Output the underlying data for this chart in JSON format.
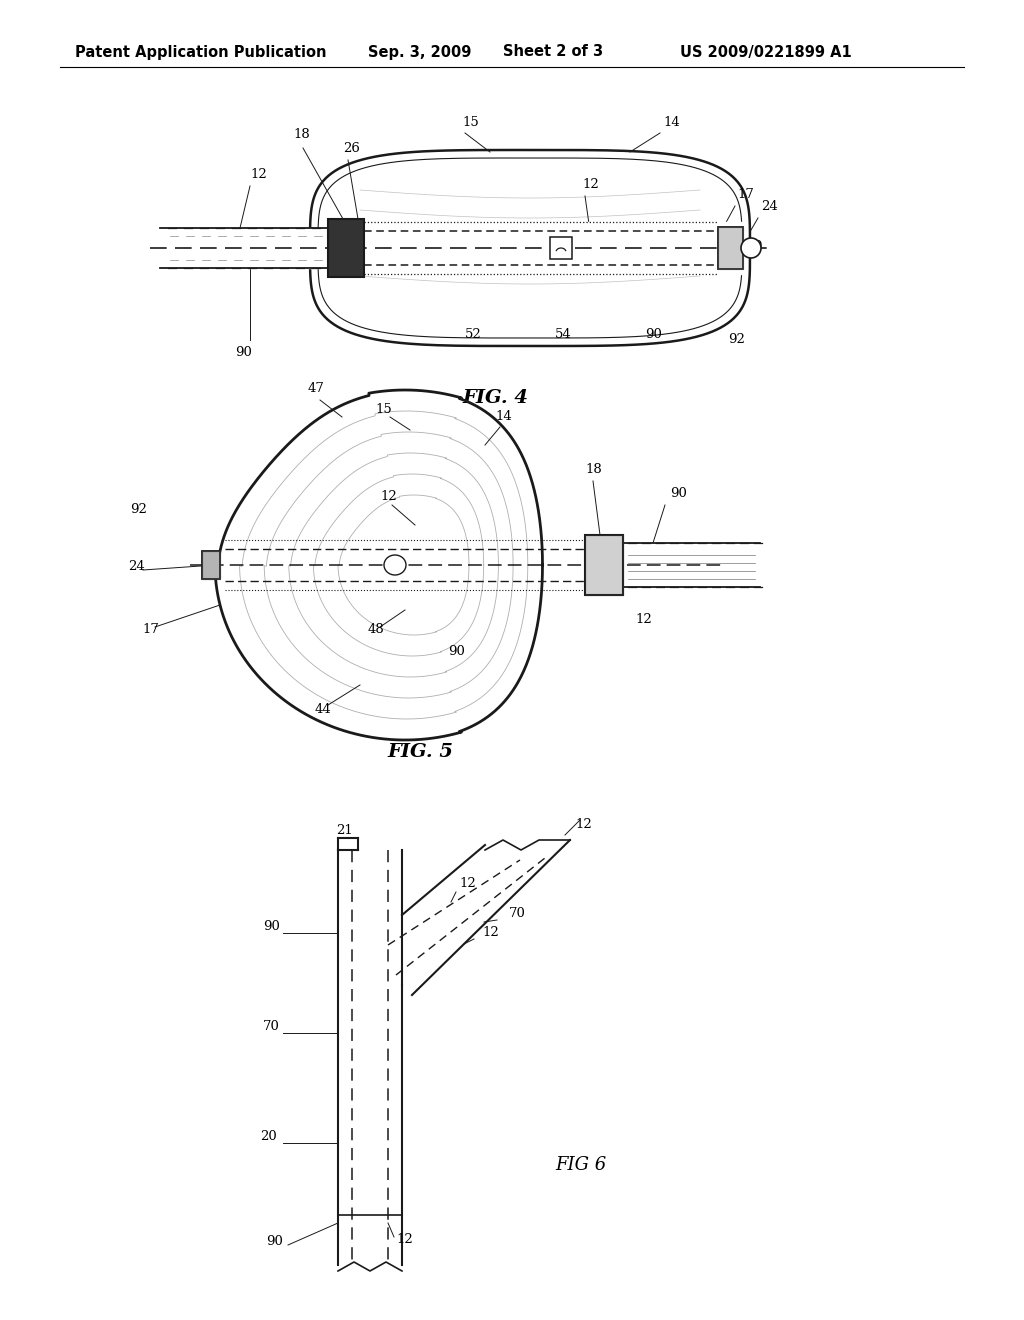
{
  "bg_color": "#ffffff",
  "header_text": "Patent Application Publication",
  "header_date": "Sep. 3, 2009",
  "header_sheet": "Sheet 2 of 3",
  "header_patent": "US 2009/0221899 A1",
  "fig4_label": "FIG. 4",
  "fig5_label": "FIG. 5",
  "fig6_label": "FIG 6",
  "line_color": "#1a1a1a",
  "gray_color": "#888888"
}
